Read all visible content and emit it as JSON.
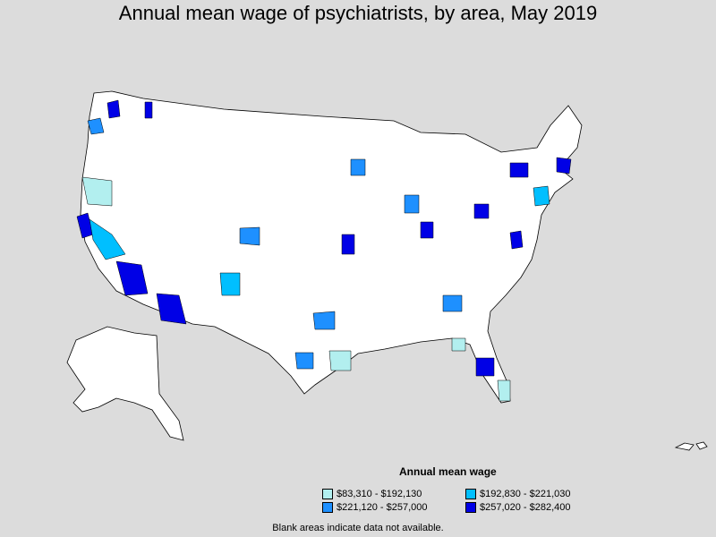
{
  "title": "Annual mean wage of psychiatrists, by area, May 2019",
  "legend": {
    "title": "Annual mean wage",
    "items": [
      {
        "label": "$83,310 - $192,130",
        "color": "#b2efef"
      },
      {
        "label": "$192,830 - $221,030",
        "color": "#00bfff"
      },
      {
        "label": "$221,120 - $257,000",
        "color": "#1e90ff"
      },
      {
        "label": "$257,020 - $282,400",
        "color": "#0000e6"
      }
    ]
  },
  "note": "Blank areas indicate data not available.",
  "colors": {
    "background": "#dcdcdc",
    "land": "#ffffff",
    "border": "#000000"
  }
}
